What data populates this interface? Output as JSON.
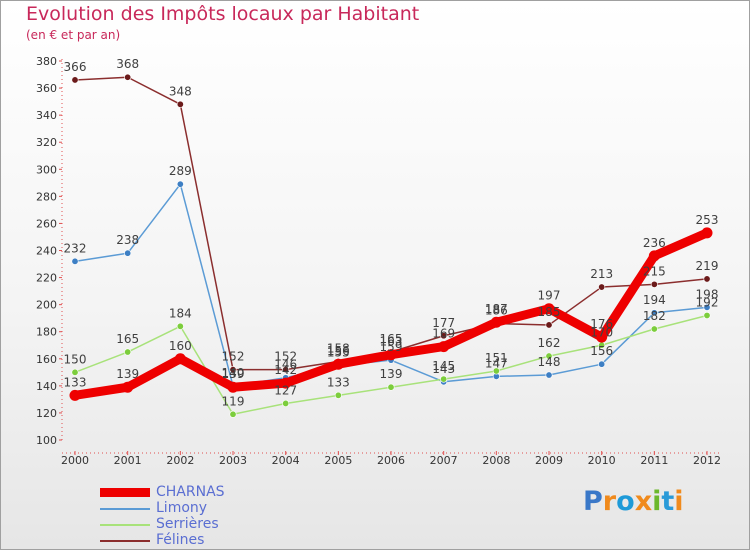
{
  "title": "Evolution des Impôts locaux par Habitant",
  "subtitle": "(en € et par an)",
  "logo": {
    "text": "Proxiti",
    "letters": [
      "P",
      "r",
      "o",
      "x",
      "i",
      "t",
      "i"
    ],
    "colors": [
      "#3a78c8",
      "#f08a1c",
      "#1e9ad8",
      "#f08a1c",
      "#6cb82c",
      "#2a9ad8",
      "#f08a1c"
    ]
  },
  "chart_data": {
    "type": "line",
    "title": "Evolution des Impôts locaux par Habitant",
    "ylabel": "(en € et par an)",
    "xlabel": "",
    "categories": [
      "2000",
      "2001",
      "2002",
      "2003",
      "2004",
      "2005",
      "2006",
      "2007",
      "2008",
      "2009",
      "2010",
      "2011",
      "2012"
    ],
    "ylim": [
      100,
      380
    ],
    "yticks": [
      100,
      120,
      140,
      160,
      180,
      200,
      220,
      240,
      260,
      280,
      300,
      320,
      340,
      360,
      380
    ],
    "grid": false,
    "legend_position": "bottom-left",
    "series": [
      {
        "name": "CHARNAS",
        "color": "#ee0000",
        "marker": "#ee0000",
        "thick": true,
        "values": [
          133,
          139,
          160,
          139,
          142,
          156,
          163,
          169,
          187,
          197,
          176,
          236,
          253
        ]
      },
      {
        "name": "Limony",
        "color": "#5b9bd5",
        "marker": "#3d7fc4",
        "thick": false,
        "values": [
          232,
          238,
          289,
          140,
          146,
          155,
          159,
          143,
          147,
          148,
          156,
          194,
          198
        ]
      },
      {
        "name": "Serrières",
        "color": "#a8e27a",
        "marker": "#7ccd3c",
        "thick": false,
        "values": [
          150,
          165,
          184,
          119,
          127,
          133,
          139,
          145,
          151,
          162,
          170,
          182,
          192
        ]
      },
      {
        "name": "Félines",
        "color": "#8b2e2e",
        "marker": "#6b1a1a",
        "thick": false,
        "values": [
          366,
          368,
          348,
          152,
          152,
          158,
          165,
          177,
          186,
          185,
          213,
          215,
          219
        ]
      }
    ]
  }
}
